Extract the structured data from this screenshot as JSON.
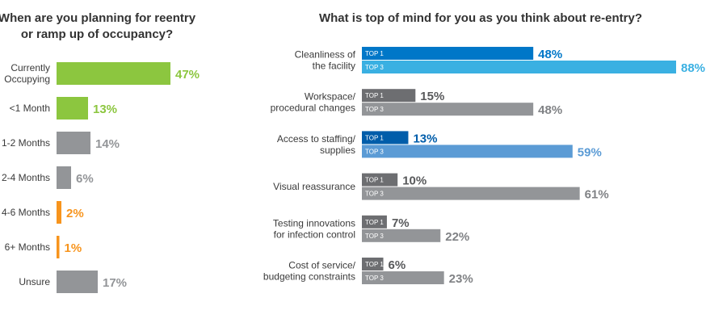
{
  "chart_data": [
    {
      "type": "bar",
      "orientation": "horizontal",
      "title": [
        "When are you planning for reentry",
        "or ramp up of occupancy?"
      ],
      "categories": [
        [
          "Currently",
          "Occupying"
        ],
        [
          "<1 Month"
        ],
        [
          "1-2 Months"
        ],
        [
          "2-4 Months"
        ],
        [
          "4-6 Months"
        ],
        [
          "6+ Months"
        ],
        [
          "Unsure"
        ]
      ],
      "values": [
        47,
        13,
        14,
        6,
        2,
        1,
        17
      ],
      "value_labels": [
        "47%",
        "13%",
        "14%",
        "6%",
        "2%",
        "1%",
        "17%"
      ],
      "colors": [
        "#8cc63f",
        "#8cc63f",
        "#939598",
        "#939598",
        "#f7941d",
        "#f7941d",
        "#939598"
      ],
      "xlim": [
        0,
        47
      ],
      "grid": false
    },
    {
      "type": "bar",
      "orientation": "horizontal",
      "title": "What is top of mind for you as you think about re-entry?",
      "categories": [
        [
          "Cleanliness of",
          "the facility"
        ],
        [
          "Workspace/",
          "procedural changes"
        ],
        [
          "Access to staffing/",
          "supplies"
        ],
        [
          "Visual reassurance"
        ],
        [
          "Testing innovations",
          "for infection control"
        ],
        [
          "Cost of service/",
          "budgeting constraints"
        ]
      ],
      "series": [
        {
          "name": "TOP 1",
          "values": [
            48,
            15,
            13,
            10,
            7,
            6
          ],
          "value_labels": [
            "48%",
            "15%",
            "13%",
            "10%",
            "7%",
            "6%"
          ]
        },
        {
          "name": "TOP 3",
          "values": [
            88,
            48,
            59,
            61,
            22,
            23
          ],
          "value_labels": [
            "88%",
            "48%",
            "59%",
            "61%",
            "22%",
            "23%"
          ]
        }
      ],
      "colors": {
        "top1": [
          "#0077c8",
          "#6d6e71",
          "#005daa",
          "#6d6e71",
          "#6d6e71",
          "#6d6e71"
        ],
        "top3": [
          "#3ab0e2",
          "#939598",
          "#5b9bd5",
          "#939598",
          "#939598",
          "#939598"
        ],
        "top1_label": [
          "#0077c8",
          "#58595b",
          "#005daa",
          "#58595b",
          "#58595b",
          "#58595b"
        ],
        "top3_label": [
          "#3ab0e2",
          "#808285",
          "#5b9bd5",
          "#808285",
          "#808285",
          "#808285"
        ]
      },
      "xlim": [
        0,
        88
      ],
      "grid": false
    }
  ]
}
